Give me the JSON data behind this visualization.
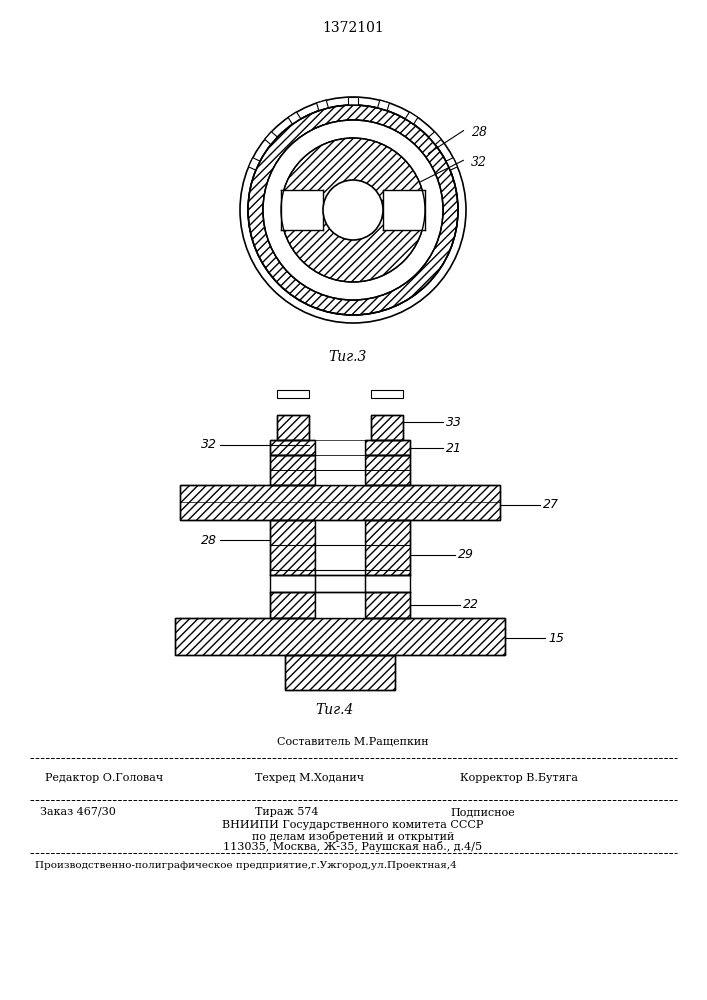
{
  "title": "1372101",
  "fig3_label": "Τиг.3",
  "fig4_label": "Τиг.4",
  "label_28_fig3": "28",
  "label_32_fig3": "32",
  "label_32_fig4": "32",
  "label_33_fig4": "33",
  "label_21_fig4": "21",
  "label_27_fig4": "27",
  "label_28_fig4": "28",
  "label_29_fig4": "29",
  "label_22_fig4": "22",
  "label_15_fig4": "15",
  "bottom_sestavitel": "Составитель М.Ращепкин",
  "bottom_redaktor": "Редактор О.Головач",
  "bottom_tekhred": "Техред М.Ходанич",
  "bottom_korrektor": "Корректор В.Бутяга",
  "bottom_zakaz": "Заказ 467/30",
  "bottom_tirazh": "Тираж 574",
  "bottom_podpisnoe": "Подписное",
  "bottom_vnipi1": "ВНИИПИ Государственного комитета СССР",
  "bottom_vnipi2": "по делам изобретений и открытий",
  "bottom_vnipi3": "113035, Москва, Ж-35, Раушская наб., д.4/5",
  "bottom_production": "Производственно-полиграфическое предприятие,г.Ужгород,ул.Проектная,4",
  "bg_color": "#ffffff",
  "line_color": "#000000"
}
